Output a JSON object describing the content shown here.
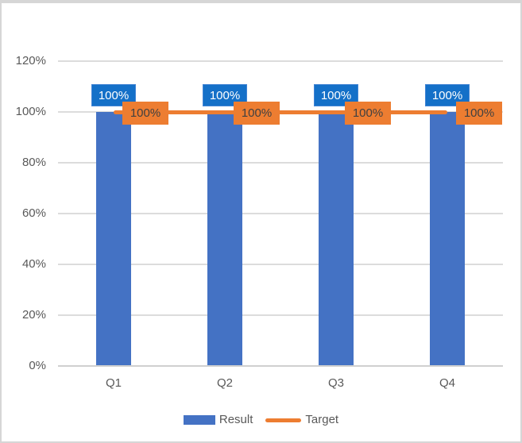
{
  "chart_data": {
    "type": "combo-bar-line",
    "title": "",
    "categories": [
      "Q1",
      "Q2",
      "Q3",
      "Q4"
    ],
    "series": [
      {
        "name": "Result",
        "type": "bar",
        "values": [
          1.0,
          1.0,
          1.0,
          1.0
        ],
        "value_labels": [
          "100%",
          "100%",
          "100%",
          "100%"
        ],
        "color": "#4472C4",
        "label_fill": "#1470C8",
        "label_text_color": "#FFFFFF"
      },
      {
        "name": "Target",
        "type": "line",
        "values": [
          1.0,
          1.0,
          1.0,
          1.0
        ],
        "value_labels": [
          "100%",
          "100%",
          "100%",
          "100%"
        ],
        "color": "#ED7D31",
        "label_fill": "#ED7D31",
        "label_text_color": "#404040"
      }
    ],
    "y_axis": {
      "min": 0,
      "max": 1.2,
      "tick_interval": 0.2,
      "tick_labels": [
        "0%",
        "20%",
        "40%",
        "60%",
        "80%",
        "100%",
        "120%"
      ]
    },
    "x_axis": {
      "tick_labels": [
        "Q1",
        "Q2",
        "Q3",
        "Q4"
      ]
    },
    "gridlines": true,
    "legend": {
      "position": "bottom",
      "entries": [
        "Result",
        "Target"
      ]
    },
    "colors": {
      "axis_text": "#595959",
      "gridline": "#DCDCDC",
      "frame_border": "#D6D6D6"
    }
  }
}
